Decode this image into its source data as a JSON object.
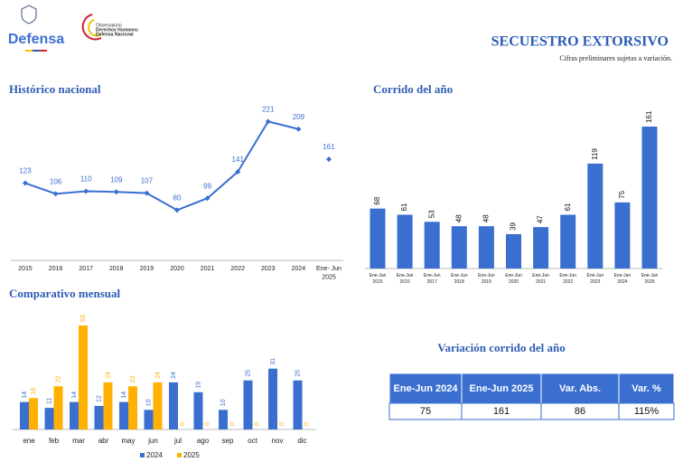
{
  "header": {
    "logo_text": "Defensa",
    "observatory": [
      "Observatorio",
      "Derechos Humanos",
      "Defensa Nacional"
    ],
    "title": "SECUESTRO EXTORSIVO",
    "subtitle": "Cifras preliminares sujetas a variación."
  },
  "chart_data": [
    {
      "type": "line",
      "title": "Histórico nacional",
      "categories": [
        [
          "2015"
        ],
        [
          "2016"
        ],
        [
          "2017"
        ],
        [
          "2018"
        ],
        [
          "2019"
        ],
        [
          "2020"
        ],
        [
          "2021"
        ],
        [
          "2022"
        ],
        [
          "2023"
        ],
        [
          "2024"
        ],
        [
          "Ene- Jun",
          "2025"
        ]
      ],
      "series": [
        {
          "color": "#3a6fd0",
          "values": [
            123,
            106,
            110,
            109,
            107,
            80,
            99,
            141,
            221,
            209,
            null
          ]
        },
        {
          "color": "#3a6fd0",
          "values": [
            null,
            null,
            null,
            null,
            null,
            null,
            null,
            null,
            null,
            null,
            161
          ]
        }
      ]
    },
    {
      "type": "bar",
      "title": "Corrido del año",
      "categories": [
        [
          "Ene-Jun",
          "2015"
        ],
        [
          "Ene-Jun",
          "2016"
        ],
        [
          "Ene-Jun",
          "2017"
        ],
        [
          "Ene-Jun",
          "2018"
        ],
        [
          "Ene-Jun",
          "2019"
        ],
        [
          "Ene-Jun",
          "2020"
        ],
        [
          "Ene-Jun",
          "2021"
        ],
        [
          "Ene-Jun",
          "2022"
        ],
        [
          "Ene-Jun",
          "2023"
        ],
        [
          "Ene-Jun",
          "2024"
        ],
        [
          "Ene-Jun",
          "2025"
        ]
      ],
      "color": "#3a6fd0",
      "values": [
        68,
        61,
        53,
        48,
        48,
        39,
        47,
        61,
        119,
        75,
        161
      ]
    },
    {
      "type": "grouped-bar",
      "title": "Comparativo mensual",
      "categories": [
        "ene",
        "feb",
        "mar",
        "abr",
        "may",
        "jun",
        "jul",
        "ago",
        "sep",
        "oct",
        "nov",
        "dic"
      ],
      "series": [
        {
          "name": "2024",
          "color": "#3a6fd0",
          "values": [
            14,
            11,
            14,
            12,
            14,
            10,
            24,
            19,
            10,
            25,
            31,
            25
          ]
        },
        {
          "name": "2025",
          "color": "#ffb000",
          "values": [
            16,
            22,
            53,
            24,
            22,
            24,
            0,
            0,
            0,
            0,
            0,
            0
          ]
        }
      ]
    }
  ],
  "table": {
    "title": "Variación corrido del año",
    "columns": [
      "Ene-Jun 2024",
      "Ene-Jun 2025",
      "Var. Abs.",
      "Var. %"
    ],
    "rows": [
      [
        "75",
        "161",
        "86",
        "115%"
      ]
    ]
  }
}
